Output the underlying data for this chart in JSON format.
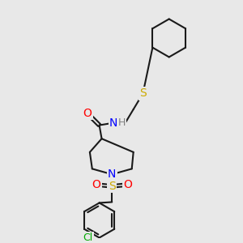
{
  "bg_color": "#e8e8e8",
  "bond_color": "#1a1a1a",
  "bond_width": 1.5,
  "atom_colors": {
    "N": "#0000ff",
    "O": "#ff0000",
    "S": "#ccaa00",
    "Cl": "#00aa00",
    "C": "#1a1a1a",
    "H": "#808080"
  },
  "figsize": [
    3.0,
    3.0
  ],
  "dpi": 100
}
